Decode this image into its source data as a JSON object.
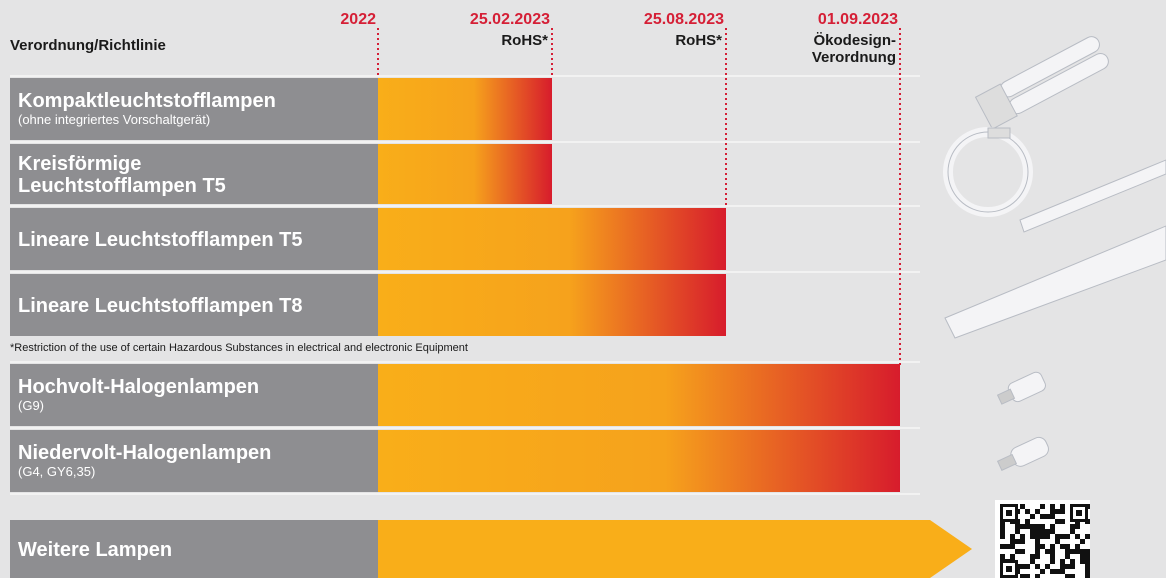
{
  "header": {
    "column_label": "Verordnung/Richtlinie"
  },
  "milestones": [
    {
      "date": "2022",
      "lines": []
    },
    {
      "date": "25.02.2023",
      "lines": [
        "RoHS*"
      ]
    },
    {
      "date": "25.08.2023",
      "lines": [
        "RoHS*"
      ]
    },
    {
      "date": "01.09.2023",
      "lines": [
        "Ökodesign-",
        "Verordnung"
      ]
    }
  ],
  "rows": [
    {
      "title": [
        "Kompaktleuchtstofflampen"
      ],
      "subtitle": "(ohne integriertes Vorschaltgerät)"
    },
    {
      "title": [
        "Kreisförmige",
        "Leuchtstofflampen T5"
      ]
    },
    {
      "title": [
        "Lineare Leuchtstofflampen T5"
      ]
    },
    {
      "title": [
        "Lineare Leuchtstofflampen T8"
      ]
    },
    {
      "title": [
        "Hochvolt-Halogenlampen"
      ],
      "subtitle": "(G9)"
    },
    {
      "title": [
        "Niedervolt-Halogenlampen"
      ],
      "subtitle": "(G4, GY6,35)"
    },
    {
      "title": [
        "Weitere Lampen"
      ]
    }
  ],
  "footnote": "*Restriction of the use of certain Hazardous Substances in electrical and electronic Equipment"
}
